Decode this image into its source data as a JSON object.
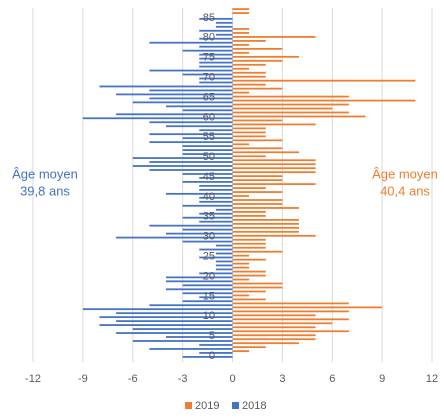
{
  "chart_data": {
    "type": "pyramid",
    "categories": [
      0,
      null,
      null,
      null,
      null,
      5,
      null,
      null,
      null,
      null,
      10,
      null,
      null,
      null,
      null,
      15,
      null,
      null,
      null,
      null,
      20,
      null,
      null,
      null,
      null,
      25,
      null,
      null,
      null,
      null,
      30,
      null,
      null,
      null,
      null,
      35,
      null,
      null,
      null,
      null,
      40,
      null,
      null,
      null,
      null,
      45,
      null,
      null,
      null,
      null,
      50,
      null,
      null,
      null,
      null,
      55,
      null,
      null,
      null,
      null,
      60,
      null,
      null,
      null,
      null,
      65,
      null,
      null,
      null,
      null,
      70,
      null,
      null,
      null,
      null,
      75,
      null,
      null,
      null,
      null,
      80,
      null,
      null,
      null,
      null,
      85,
      null,
      null
    ],
    "series": [
      {
        "name": "2019",
        "color": "#ed7d31",
        "values": [
          0,
          1,
          2,
          4,
          5,
          5,
          7,
          5,
          6,
          7,
          5,
          7,
          9,
          7,
          2,
          1,
          2,
          3,
          3,
          1,
          2,
          2,
          1,
          1,
          2,
          1,
          3,
          2,
          2,
          2,
          5,
          4,
          4,
          4,
          4,
          2,
          2,
          4,
          3,
          3,
          1,
          3,
          2,
          5,
          3,
          3,
          5,
          5,
          5,
          5,
          2,
          4,
          3,
          1,
          3,
          2,
          2,
          2,
          5,
          3,
          8,
          7,
          6,
          7,
          11,
          7,
          1,
          3,
          2,
          11,
          2,
          2,
          1,
          2,
          3,
          4,
          1,
          3,
          1,
          2,
          5,
          1,
          1,
          0,
          0,
          0,
          1,
          1
        ]
      },
      {
        "name": "2018",
        "color": "#4472c4",
        "values": [
          -3,
          -2,
          -5,
          -2,
          -6,
          -4,
          -7,
          -6,
          -8,
          -7,
          -8,
          -7,
          -9,
          -5,
          -3,
          -2,
          -3,
          -4,
          -3,
          -4,
          -4,
          -2,
          -1,
          -1,
          -1,
          -2,
          -1,
          -2,
          -1,
          -3,
          -7,
          -4,
          -3,
          -5,
          -2,
          -3,
          -2,
          -1,
          -3,
          -2,
          -2,
          -4,
          -2,
          -2,
          -3,
          -2,
          -3,
          -5,
          -6,
          -5,
          -6,
          -3,
          -3,
          -3,
          -5,
          -3,
          -5,
          -2,
          -4,
          -5,
          -9,
          -7,
          -3,
          -4,
          -6,
          -5,
          -7,
          -5,
          -8,
          -2,
          -2,
          -3,
          -5,
          -2,
          -2,
          -2,
          -2,
          -3,
          -2,
          -5,
          -2,
          -1,
          -2,
          -1,
          -1,
          -2,
          0,
          0
        ]
      }
    ],
    "xlim": [
      -12,
      12
    ],
    "xticks": [
      -12,
      -9,
      -6,
      -3,
      0,
      3,
      6,
      9,
      12
    ],
    "grid": true,
    "annotations": [
      {
        "lines": [
          "Âge moyen",
          "39,8 ans"
        ],
        "color": "#4472c4",
        "side": "left"
      },
      {
        "lines": [
          "Âge moyen",
          "40,4 ans"
        ],
        "color": "#ed7d31",
        "side": "right"
      }
    ],
    "legend": "bottom"
  }
}
